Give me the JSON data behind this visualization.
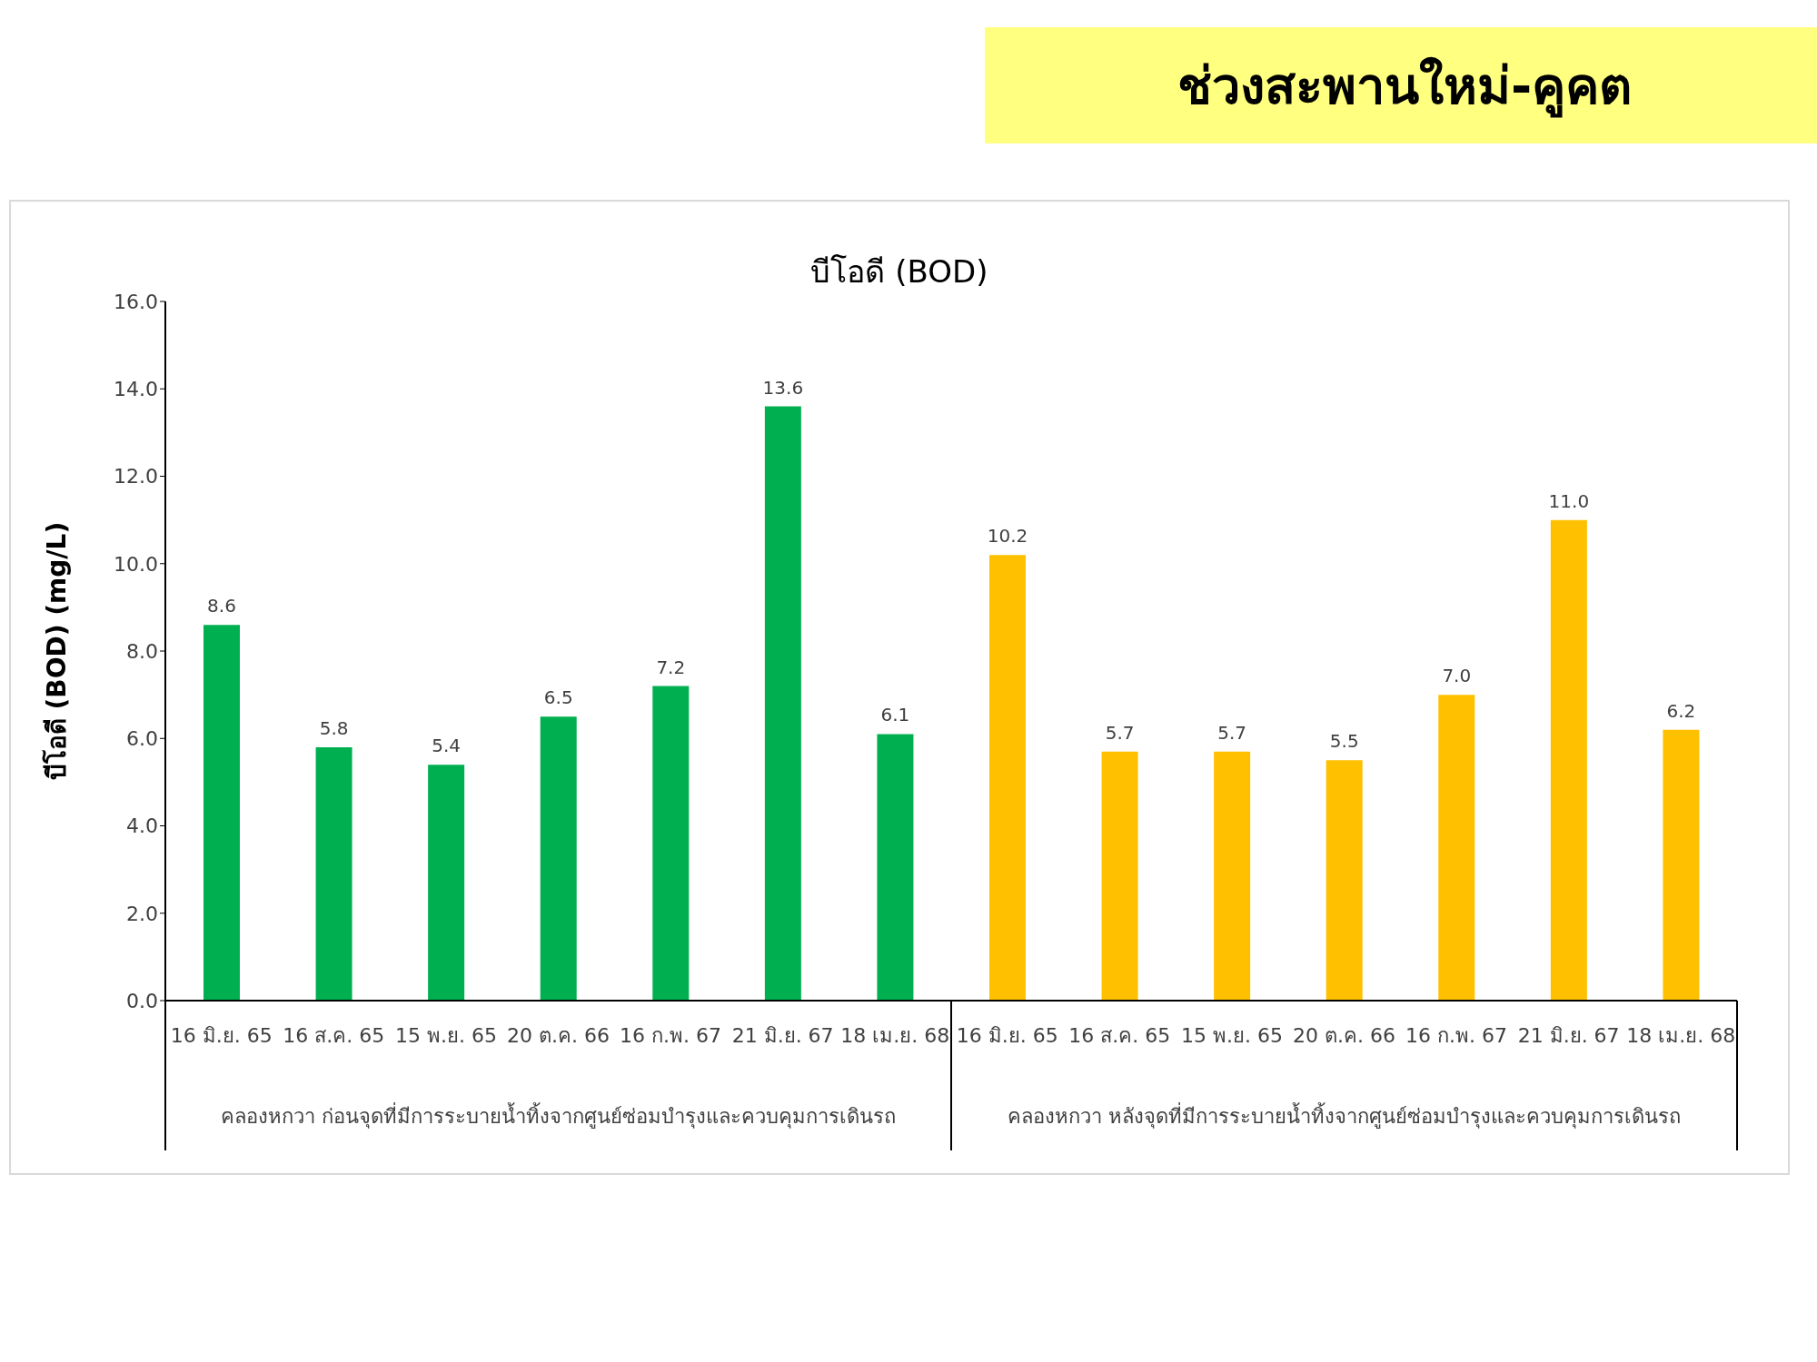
{
  "chart_data": {
    "type": "bar",
    "title": "ช่วงสะพานใหม่-คูคต",
    "subtitle": "บีโอดี (BOD)",
    "ylabel": "บีโอดี (BOD) (mg/L)",
    "categories": [
      "16 มิ.ย. 65",
      "16 ส.ค. 65",
      "15 พ.ย. 65",
      "20 ต.ค. 66",
      "16 ก.พ. 67",
      "21 มิ.ย. 67",
      "18 เม.ย. 68",
      "16 มิ.ย. 65",
      "16 ส.ค. 65",
      "15 พ.ย. 65",
      "20 ต.ค. 66",
      "16 ก.พ. 67",
      "21 มิ.ย. 67",
      "18 เม.ย. 68"
    ],
    "values": [
      8.6,
      5.8,
      5.4,
      6.5,
      7.2,
      13.6,
      6.1,
      10.2,
      5.7,
      5.7,
      5.5,
      7.0,
      11.0,
      6.2
    ],
    "value_labels": [
      "8.6",
      "5.8",
      "5.4",
      "6.5",
      "7.2",
      "13.6",
      "6.1",
      "10.2",
      "5.7",
      "5.7",
      "5.5",
      "7.0",
      "11.0",
      "6.2"
    ],
    "colors": [
      "#00b050",
      "#00b050",
      "#00b050",
      "#00b050",
      "#00b050",
      "#00b050",
      "#00b050",
      "#ffc000",
      "#ffc000",
      "#ffc000",
      "#ffc000",
      "#ffc000",
      "#ffc000",
      "#ffc000"
    ],
    "ylim": [
      0,
      16
    ],
    "yticks": [
      {
        "value": 0,
        "label": "0.0"
      },
      {
        "value": 2,
        "label": "2.0"
      },
      {
        "value": 4,
        "label": "4.0"
      },
      {
        "value": 6,
        "label": "6.0"
      },
      {
        "value": 8,
        "label": "8.0"
      },
      {
        "value": 10,
        "label": "10.0"
      },
      {
        "value": 12,
        "label": "12.0"
      },
      {
        "value": 14,
        "label": "14.0"
      },
      {
        "value": 16,
        "label": "16.0"
      }
    ],
    "annotations": [
      "คลองหกวา ก่อนจุดที่มีการระบายน้ำทิ้งจากศูนย์ซ่อมบำรุงและควบคุมการเดินรถ",
      "คลองหกวา หลังจุดที่มีการระบายน้ำทิ้งจากศูนย์ซ่อมบำรุงและควบคุมการเดินรถ"
    ],
    "grid": false,
    "legend": false
  }
}
